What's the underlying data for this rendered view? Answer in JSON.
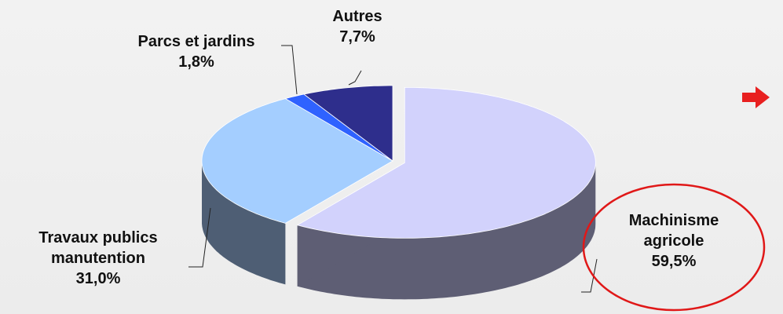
{
  "chart_data": {
    "type": "pie",
    "categories": [
      "Machinisme agricole",
      "Travaux publics manutention",
      "Parcs et jardins",
      "Autres"
    ],
    "values": [
      59.5,
      31.0,
      1.8,
      7.7
    ],
    "value_labels": [
      "59,5%",
      "31,0%",
      "1,8%",
      "7,7%"
    ],
    "colors": [
      "#d2d2fc",
      "#a4ceff",
      "#2f62ff",
      "#2e2e8c"
    ],
    "side_colors": [
      "#5e5e74",
      "#4e5e74",
      "#1c3ca0",
      "#1c1c5a"
    ]
  }
}
